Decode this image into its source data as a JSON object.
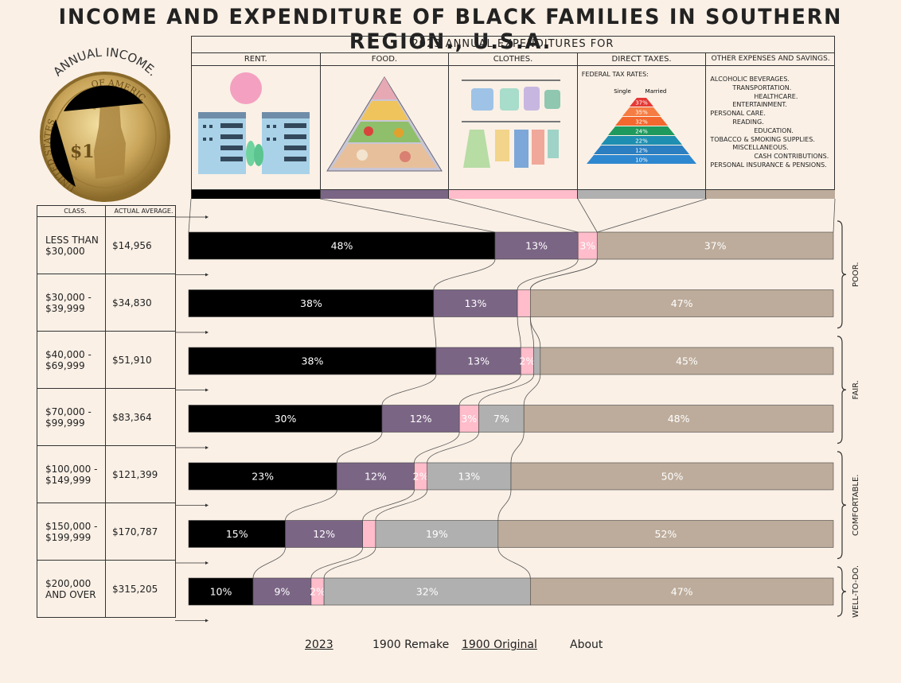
{
  "title": "INCOME AND EXPENDITURE OF BLACK FAMILIES IN SOUTHERN REGION., U.S.A.",
  "expenditure_header": "2023 ANNUAL EXPENDITURES FOR",
  "categories": [
    {
      "label": "RENT.",
      "color": "#000000"
    },
    {
      "label": "FOOD.",
      "color": "#7b6585"
    },
    {
      "label": "CLOTHES.",
      "color": "#ffbcca"
    },
    {
      "label": "DIRECT TAXES.",
      "color": "#b0b0b0"
    },
    {
      "label": "OTHER EXPENSES AND SAVINGS.",
      "color": "#bdac9b"
    }
  ],
  "tax_rates": {
    "title": "FEDERAL TAX RATES:",
    "single_label": "Single",
    "married_label": "Married",
    "rates": [
      "37%",
      "35%",
      "32%",
      "24%",
      "22%",
      "12%",
      "10%"
    ]
  },
  "other_expenses": [
    "ALCOHOLIC BEVERAGES.",
    "TRANSPORTATION.",
    "HEALTHCARE.",
    "ENTERTAINMENT.",
    "PERSONAL CARE.",
    "READING.",
    "EDUCATION.",
    "TOBACCO & SMOKING SUPPLIES.",
    "MISCELLANEOUS.",
    "CASH CONTRIBUTIONS.",
    "PERSONAL INSURANCE & PENSIONS."
  ],
  "coin": {
    "arc_text": "ANNUAL INCOME.",
    "rim_top": "OF AMERICA",
    "rim_left": "UNITED STATES",
    "denomination": "$1"
  },
  "table_headers": {
    "class": "CLASS.",
    "average": "ACTUAL AVERAGE."
  },
  "chart_data": {
    "type": "bar",
    "orientation": "horizontal-stacked-100",
    "series_names": [
      "RENT.",
      "FOOD.",
      "CLOTHES.",
      "DIRECT TAXES.",
      "OTHER EXPENSES AND SAVINGS."
    ],
    "rows": [
      {
        "class_line1": "LESS THAN",
        "class_line2": "$30,000",
        "average": "$14,956",
        "values": [
          48,
          13,
          3,
          0,
          37
        ],
        "labels": [
          "48%",
          "13%",
          "3%",
          "",
          "37%"
        ]
      },
      {
        "class_line1": "$30,000 -",
        "class_line2": "$39,999",
        "average": "$34,830",
        "values": [
          38,
          13,
          2,
          0,
          47
        ],
        "labels": [
          "38%",
          "13%",
          "",
          "",
          "47%"
        ]
      },
      {
        "class_line1": "$40,000 -",
        "class_line2": "$69,999",
        "average": "$51,910",
        "values": [
          38,
          13,
          2,
          1,
          45
        ],
        "labels": [
          "38%",
          "13%",
          "2%",
          "",
          "45%"
        ]
      },
      {
        "class_line1": "$70,000 -",
        "class_line2": "$99,999",
        "average": "$83,364",
        "values": [
          30,
          12,
          3,
          7,
          48
        ],
        "labels": [
          "30%",
          "12%",
          "3%",
          "7%",
          "48%"
        ]
      },
      {
        "class_line1": "$100,000 -",
        "class_line2": "$149,999",
        "average": "$121,399",
        "values": [
          23,
          12,
          2,
          13,
          50
        ],
        "labels": [
          "23%",
          "12%",
          "2%",
          "13%",
          "50%"
        ]
      },
      {
        "class_line1": "$150,000 -",
        "class_line2": "$199,999",
        "average": "$170,787",
        "values": [
          15,
          12,
          2,
          19,
          52
        ],
        "labels": [
          "15%",
          "12%",
          "",
          "19%",
          "52%"
        ]
      },
      {
        "class_line1": "$200,000",
        "class_line2": "AND OVER",
        "average": "$315,205",
        "values": [
          10,
          9,
          2,
          32,
          47
        ],
        "labels": [
          "10%",
          "9%",
          "2%",
          "32%",
          "47%"
        ]
      }
    ],
    "groups": [
      {
        "label": "POOR.",
        "rows": [
          0,
          1
        ]
      },
      {
        "label": "FAIR.",
        "rows": [
          2,
          3
        ]
      },
      {
        "label": "COMFORTABLE.",
        "rows": [
          4,
          5
        ]
      },
      {
        "label": "WELL-TO-DO.",
        "rows": [
          6,
          6
        ]
      }
    ]
  },
  "nav": {
    "item1": "2023",
    "item2": "1900 Remake",
    "item3": "1900 Original",
    "item4": "About"
  }
}
